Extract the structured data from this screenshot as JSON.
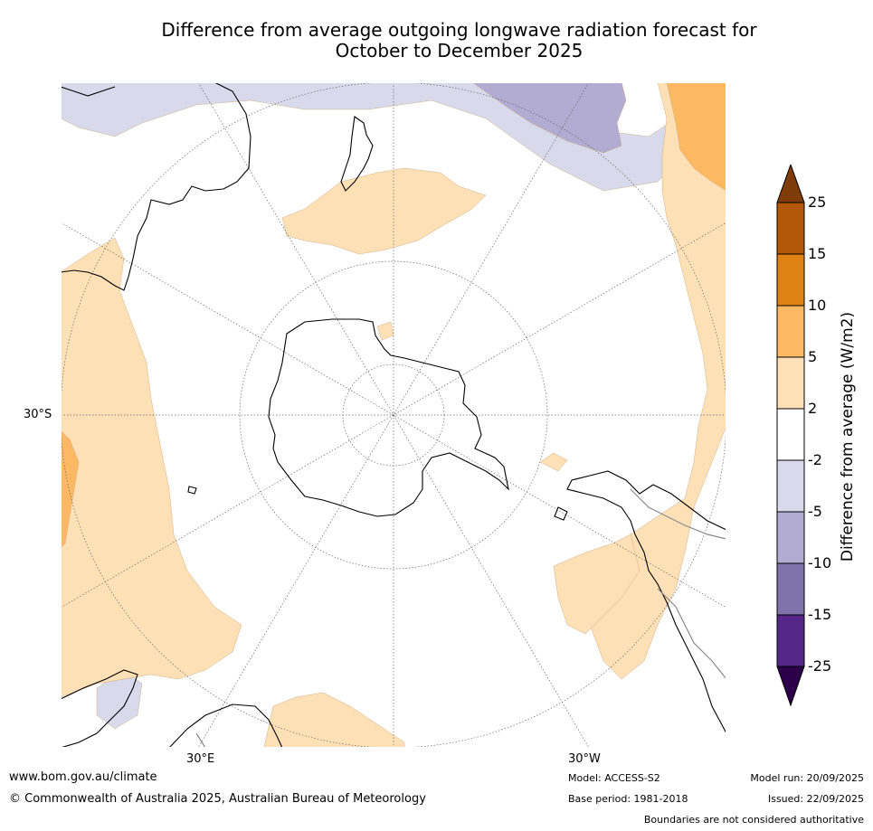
{
  "title": {
    "line1": "Difference from average outgoing longwave radiation forecast for",
    "line2": "October to December 2025"
  },
  "map": {
    "projection": "south-polar-stereographic",
    "labels": {
      "lat_30s": "30°S",
      "lon_30e": "30°E",
      "lon_30w": "30°W"
    }
  },
  "colorbar": {
    "label": "Difference from average (W/m2)",
    "ticks": [
      "25",
      "15",
      "10",
      "5",
      "2",
      "-2",
      "-5",
      "-10",
      "-15",
      "-25"
    ],
    "colors": {
      "over": "#7f3b08",
      "c15_25": "#b35806",
      "c10_15": "#e08214",
      "c5_10": "#fdb863",
      "c2_5": "#fee0b6",
      "cm2_2": "#ffffff",
      "cm5_m2": "#d8daeb",
      "cm10_m5": "#b2abd2",
      "cm15_m10": "#8073ac",
      "cm25_m15": "#542788",
      "under": "#2d004b"
    }
  },
  "footer": {
    "website": "www.bom.gov.au/climate",
    "copyright": "© Commonwealth of Australia 2025, Australian Bureau of Meteorology",
    "model": "Model: ACCESS-S2",
    "base_period": "Base period: 1981-2018",
    "model_run": "Model run: 20/09/2025",
    "issued": "Issued: 22/09/2025",
    "disclaimer": "Boundaries are not considered authoritative"
  }
}
